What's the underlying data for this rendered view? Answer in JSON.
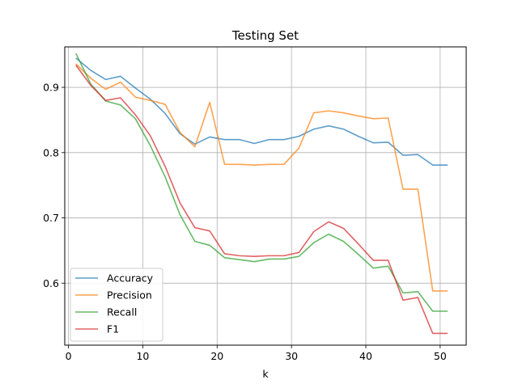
{
  "chart_data": {
    "type": "line",
    "title": "Testing Set",
    "xlabel": "k",
    "ylabel": "",
    "xlim": [
      -0.5,
      53.5
    ],
    "ylim": [
      0.505,
      0.962
    ],
    "xticks": [
      0,
      10,
      20,
      30,
      40,
      50
    ],
    "yticks": [
      0.6,
      0.7,
      0.8,
      0.9
    ],
    "xtick_labels": [
      "0",
      "10",
      "20",
      "30",
      "40",
      "50"
    ],
    "ytick_labels": [
      "0.6",
      "0.7",
      "0.8",
      "0.9"
    ],
    "grid": true,
    "legend_position": "lower-left",
    "x": [
      1,
      3,
      5,
      7,
      9,
      11,
      13,
      15,
      17,
      19,
      21,
      23,
      25,
      27,
      29,
      31,
      33,
      35,
      37,
      39,
      41,
      43,
      45,
      47,
      49,
      51
    ],
    "series": [
      {
        "name": "Accuracy",
        "color": "#1f77b4",
        "values": [
          0.945,
          0.926,
          0.912,
          0.917,
          0.899,
          0.882,
          0.86,
          0.829,
          0.813,
          0.824,
          0.82,
          0.82,
          0.814,
          0.82,
          0.82,
          0.825,
          0.836,
          0.841,
          0.836,
          0.825,
          0.815,
          0.816,
          0.796,
          0.797,
          0.781,
          0.781
        ]
      },
      {
        "name": "Precision",
        "color": "#ff7f0e",
        "values": [
          0.936,
          0.914,
          0.897,
          0.908,
          0.885,
          0.88,
          0.874,
          0.831,
          0.809,
          0.877,
          0.782,
          0.782,
          0.781,
          0.782,
          0.782,
          0.807,
          0.861,
          0.864,
          0.861,
          0.856,
          0.852,
          0.853,
          0.744,
          0.744,
          0.588,
          0.588
        ]
      },
      {
        "name": "Recall",
        "color": "#2ca02c",
        "values": [
          0.952,
          0.905,
          0.879,
          0.873,
          0.852,
          0.811,
          0.763,
          0.705,
          0.664,
          0.658,
          0.639,
          0.636,
          0.633,
          0.637,
          0.637,
          0.641,
          0.662,
          0.675,
          0.664,
          0.644,
          0.623,
          0.626,
          0.585,
          0.587,
          0.557,
          0.557
        ]
      },
      {
        "name": "F1",
        "color": "#d62728",
        "values": [
          0.934,
          0.903,
          0.88,
          0.884,
          0.858,
          0.826,
          0.779,
          0.723,
          0.685,
          0.68,
          0.645,
          0.642,
          0.641,
          0.642,
          0.642,
          0.647,
          0.679,
          0.694,
          0.684,
          0.66,
          0.635,
          0.635,
          0.574,
          0.578,
          0.523,
          0.523
        ]
      }
    ]
  }
}
